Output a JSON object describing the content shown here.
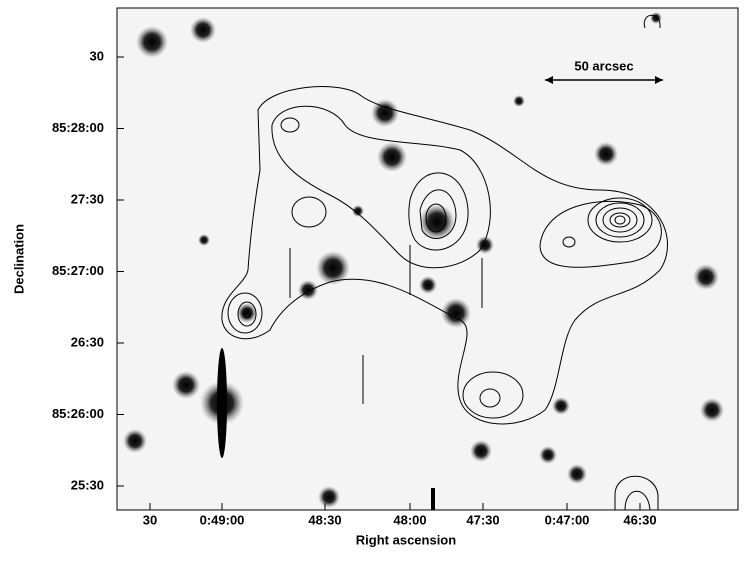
{
  "figure": {
    "x_label": "Right ascension",
    "y_label": "Declination",
    "x_ticks": [
      "30",
      "0:49:00",
      "48:30",
      "48:00",
      "47:30",
      "0:47:00",
      "46:30"
    ],
    "y_ticks": [
      "30",
      "85:28:00",
      "27:30",
      "85:27:00",
      "26:30",
      "85:26:00",
      "25:30"
    ],
    "scale_label": "50 arcsec"
  }
}
